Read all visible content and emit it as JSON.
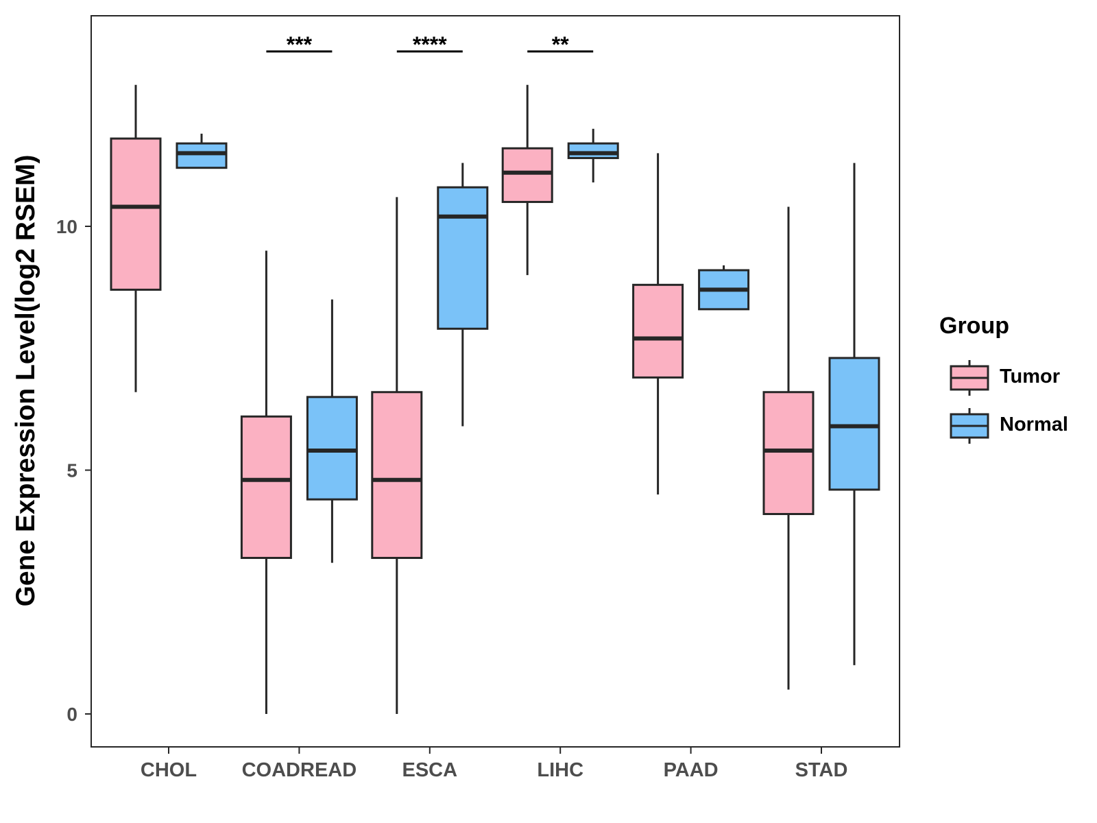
{
  "chart_data": {
    "type": "boxplot",
    "title": "",
    "xlabel": "",
    "ylabel": "Gene Expression Level(log2 RSEM)",
    "ylim": [
      -0.65,
      14.35
    ],
    "yticks": [
      0,
      5,
      10
    ],
    "grid": false,
    "legend": {
      "title": "Group",
      "placement": "right",
      "entries": [
        {
          "name": "Tumor",
          "color": "#FBB1C2"
        },
        {
          "name": "Normal",
          "color": "#7AC2F8"
        }
      ]
    },
    "categories": [
      "CHOL",
      "COADREAD",
      "ESCA",
      "LIHC",
      "PAAD",
      "STAD"
    ],
    "series": [
      {
        "name": "Tumor",
        "color": "#FBB1C2",
        "boxes": [
          {
            "low": 6.6,
            "q1": 8.7,
            "median": 10.4,
            "q3": 11.8,
            "high": 12.9
          },
          {
            "low": 0.0,
            "q1": 3.2,
            "median": 4.8,
            "q3": 6.1,
            "high": 9.5
          },
          {
            "low": 0.0,
            "q1": 3.2,
            "median": 4.8,
            "q3": 6.6,
            "high": 10.6
          },
          {
            "low": 9.0,
            "q1": 10.5,
            "median": 11.1,
            "q3": 11.6,
            "high": 12.9
          },
          {
            "low": 4.5,
            "q1": 6.9,
            "median": 7.7,
            "q3": 8.8,
            "high": 11.5
          },
          {
            "low": 0.5,
            "q1": 4.1,
            "median": 5.4,
            "q3": 6.6,
            "high": 10.4
          }
        ]
      },
      {
        "name": "Normal",
        "color": "#7AC2F8",
        "boxes": [
          {
            "low": 11.2,
            "q1": 11.2,
            "median": 11.5,
            "q3": 11.7,
            "high": 11.9
          },
          {
            "low": 3.1,
            "q1": 4.4,
            "median": 5.4,
            "q3": 6.5,
            "high": 8.5
          },
          {
            "low": 5.9,
            "q1": 7.9,
            "median": 10.2,
            "q3": 10.8,
            "high": 11.3
          },
          {
            "low": 10.9,
            "q1": 11.4,
            "median": 11.5,
            "q3": 11.7,
            "high": 12.0
          },
          {
            "low": 8.3,
            "q1": 8.3,
            "median": 8.7,
            "q3": 9.1,
            "high": 9.2
          },
          {
            "low": 1.0,
            "q1": 4.6,
            "median": 5.9,
            "q3": 7.3,
            "high": 11.3
          }
        ]
      }
    ],
    "significance": [
      {
        "category": "CHOL",
        "label": ""
      },
      {
        "category": "COADREAD",
        "label": "***"
      },
      {
        "category": "ESCA",
        "label": "****"
      },
      {
        "category": "LIHC",
        "label": "**"
      },
      {
        "category": "PAAD",
        "label": ""
      },
      {
        "category": "STAD",
        "label": ""
      }
    ]
  }
}
